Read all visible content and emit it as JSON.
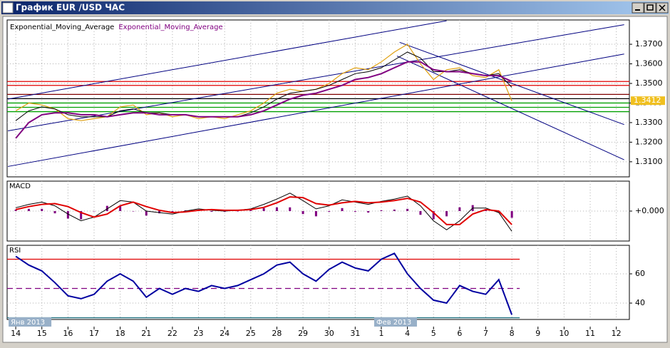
{
  "window": {
    "title": "График EUR /USD ЧАС"
  },
  "chart_data": [
    {
      "type": "line",
      "grid": true,
      "ylim": [
        1.3023,
        1.3824
      ],
      "yticks": [
        {
          "value": 1.37,
          "label": "1.3700"
        },
        {
          "value": 1.36,
          "label": "1.3600"
        },
        {
          "value": 1.35,
          "label": "1.3500"
        },
        {
          "value": 1.34,
          "label": "1.3400"
        },
        {
          "value": 1.33,
          "label": "1.3300"
        },
        {
          "value": 1.32,
          "label": "1.3200"
        },
        {
          "value": 1.31,
          "label": "1.3100"
        }
      ],
      "x": [
        0,
        0.5,
        1,
        1.5,
        2,
        2.5,
        3,
        3.5,
        4,
        4.5,
        5,
        5.5,
        6,
        6.5,
        7,
        7.5,
        8,
        8.5,
        9,
        9.5,
        10,
        10.5,
        11,
        11.5,
        12,
        12.5,
        13,
        13.5,
        14,
        14.5,
        15,
        15.5,
        16,
        16.5,
        17,
        17.5,
        18,
        18.5,
        19
      ],
      "series": [
        {
          "color": "#e0a010",
          "values": [
            1.336,
            1.34,
            1.339,
            1.337,
            1.332,
            1.331,
            1.332,
            1.333,
            1.338,
            1.339,
            1.334,
            1.335,
            1.333,
            1.334,
            1.332,
            1.333,
            1.332,
            1.334,
            1.336,
            1.34,
            1.345,
            1.347,
            1.346,
            1.347,
            1.35,
            1.355,
            1.358,
            1.357,
            1.361,
            1.366,
            1.37,
            1.36,
            1.352,
            1.357,
            1.358,
            1.354,
            1.353,
            1.357,
            1.341
          ]
        },
        {
          "name": "Exponential_Moving_Average",
          "color": "#000000",
          "values": [
            1.331,
            1.336,
            1.338,
            1.337,
            1.334,
            1.333,
            1.333,
            1.333,
            1.336,
            1.337,
            1.335,
            1.335,
            1.334,
            1.334,
            1.333,
            1.333,
            1.333,
            1.333,
            1.335,
            1.338,
            1.342,
            1.345,
            1.346,
            1.347,
            1.349,
            1.352,
            1.355,
            1.356,
            1.358,
            1.362,
            1.366,
            1.363,
            1.356,
            1.356,
            1.357,
            1.355,
            1.354,
            1.355,
            1.348
          ]
        },
        {
          "name": "Exponential_Moving_Average",
          "color": "#800080",
          "values": [
            1.322,
            1.33,
            1.334,
            1.335,
            1.335,
            1.334,
            1.334,
            1.333,
            1.334,
            1.335,
            1.335,
            1.334,
            1.334,
            1.334,
            1.333,
            1.333,
            1.333,
            1.333,
            1.334,
            1.336,
            1.339,
            1.342,
            1.344,
            1.345,
            1.347,
            1.349,
            1.352,
            1.353,
            1.355,
            1.358,
            1.361,
            1.361,
            1.357,
            1.356,
            1.356,
            1.355,
            1.354,
            1.354,
            1.351
          ]
        }
      ],
      "levels": [
        {
          "value": 1.351,
          "color": "#e00000"
        },
        {
          "value": 1.349,
          "color": "#e00000"
        },
        {
          "value": 1.3444,
          "color": "#800000"
        },
        {
          "value": 1.3422,
          "color": "#000000"
        },
        {
          "value": 1.34,
          "color": "#00a000"
        },
        {
          "value": 1.3378,
          "color": "#00a000"
        },
        {
          "value": 1.3356,
          "color": "#00a000"
        }
      ],
      "trendlines": [
        {
          "color": "#000080",
          "points": [
            [
              -0.3,
              1.342
            ],
            [
              16.5,
              1.382
            ]
          ]
        },
        {
          "color": "#000080",
          "points": [
            [
              -0.3,
              1.3258
            ],
            [
              23.3,
              1.38
            ]
          ]
        },
        {
          "color": "#000080",
          "points": [
            [
              -0.3,
              1.3076
            ],
            [
              23.3,
              1.365
            ]
          ]
        },
        {
          "color": "#000080",
          "points": [
            [
              14.7,
              1.371
            ],
            [
              23.3,
              1.329
            ]
          ]
        },
        {
          "color": "#000080",
          "points": [
            [
              14.6,
              1.364
            ],
            [
              23.3,
              1.311
            ]
          ]
        }
      ],
      "last_price": 1.3412
    },
    {
      "type": "line",
      "title": "MACD",
      "grid": true,
      "ylim": [
        -0.004,
        0.004
      ],
      "yticks": [
        {
          "value": 0,
          "label": "+0.000"
        }
      ],
      "x": [
        0,
        0.5,
        1,
        1.5,
        2,
        2.5,
        3,
        3.5,
        4,
        4.5,
        5,
        5.5,
        6,
        6.5,
        7,
        7.5,
        8,
        8.5,
        9,
        9.5,
        10,
        10.5,
        11,
        11.5,
        12,
        12.5,
        13,
        13.5,
        14,
        14.5,
        15,
        15.5,
        16,
        16.5,
        17,
        17.5,
        18,
        18.5,
        19
      ],
      "histogram": {
        "color": "#800080",
        "values": [
          0.0002,
          0.0003,
          0.0003,
          -0.0003,
          -0.001,
          -0.0011,
          0,
          0.0007,
          0.0007,
          0,
          -0.0006,
          -0.0003,
          -0.0002,
          0.0001,
          0.0002,
          -0.0001,
          -0.0001,
          0,
          0.0001,
          0.0004,
          0.0005,
          0.0005,
          -0.0004,
          -0.0007,
          -0.0001,
          0.0004,
          -0.0001,
          -0.0002,
          0.0001,
          0.0002,
          0.0003,
          -0.0005,
          -0.0011,
          -0.0007,
          0.0005,
          0.0008,
          0.0002,
          -0.0002,
          -0.0009
        ]
      },
      "series": [
        {
          "color": "#000000",
          "values": [
            0.00045,
            0.0009,
            0.0012,
            0.0007,
            -0.0004,
            -0.0013,
            -0.0008,
            0.0003,
            0.0014,
            0.0012,
            0,
            -0.0002,
            -0.0004,
            0,
            0.0003,
            0.0001,
            0,
            0.0001,
            0.0003,
            0.0009,
            0.0016,
            0.0024,
            0.0014,
            0.0003,
            0.0007,
            0.0015,
            0.0012,
            0.0009,
            0.0013,
            0.0016,
            0.002,
            0.0007,
            -0.0013,
            -0.0025,
            -0.0013,
            0.0004,
            0.0004,
            -0.0002,
            -0.0027
          ]
        },
        {
          "color": "#e00000",
          "values": [
            0.0002,
            0.0006,
            0.0009,
            0.001,
            0.0006,
            -0.0002,
            -0.0008,
            -0.0004,
            0.0007,
            0.0012,
            0.0006,
            0.0001,
            -0.0002,
            -0.0001,
            0.0001,
            0.0002,
            0.0001,
            0.0001,
            0.0002,
            0.0005,
            0.0011,
            0.0019,
            0.0018,
            0.001,
            0.0008,
            0.0011,
            0.0013,
            0.0011,
            0.0012,
            0.0014,
            0.0017,
            0.0012,
            -0.0002,
            -0.0018,
            -0.0018,
            -0.0004,
            0.0002,
            0,
            -0.0018
          ]
        }
      ]
    },
    {
      "type": "line",
      "title": "RSI",
      "grid": true,
      "ylim": [
        28.8,
        79.5
      ],
      "yticks": [
        60,
        40
      ],
      "xlim": [
        -0.33,
        23.5
      ],
      "xticks": [
        {
          "value": 0,
          "label": "14"
        },
        {
          "value": 1,
          "label": "15"
        },
        {
          "value": 2,
          "label": "16"
        },
        {
          "value": 3,
          "label": "17"
        },
        {
          "value": 4,
          "label": "18"
        },
        {
          "value": 5,
          "label": "21"
        },
        {
          "value": 6,
          "label": "22"
        },
        {
          "value": 7,
          "label": "23"
        },
        {
          "value": 8,
          "label": "24"
        },
        {
          "value": 9,
          "label": "25"
        },
        {
          "value": 10,
          "label": "28"
        },
        {
          "value": 11,
          "label": "29"
        },
        {
          "value": 12,
          "label": "30"
        },
        {
          "value": 13,
          "label": "31"
        },
        {
          "value": 14,
          "label": "1"
        },
        {
          "value": 15,
          "label": "4"
        },
        {
          "value": 16,
          "label": "5"
        },
        {
          "value": 17,
          "label": "6"
        },
        {
          "value": 18,
          "label": "7"
        },
        {
          "value": 19,
          "label": "8"
        },
        {
          "value": 20,
          "label": "9"
        },
        {
          "value": 21,
          "label": "10"
        },
        {
          "value": 22,
          "label": "11"
        },
        {
          "value": 23,
          "label": "12"
        }
      ],
      "period_labels": [
        {
          "value": 0,
          "label": "Янв 2013"
        },
        {
          "value": 14,
          "label": "Фев 2013"
        }
      ],
      "x": [
        0,
        0.5,
        1,
        1.5,
        2,
        2.5,
        3,
        3.5,
        4,
        4.5,
        5,
        5.5,
        6,
        6.5,
        7,
        7.5,
        8,
        8.5,
        9,
        9.5,
        10,
        10.5,
        11,
        11.5,
        12,
        12.5,
        13,
        13.5,
        14,
        14.5,
        15,
        15.5,
        16,
        16.5,
        17,
        17.5,
        18,
        18.5,
        19
      ],
      "series": [
        {
          "color": "#0000a0",
          "values": [
            72,
            66,
            62,
            54,
            45,
            43,
            46,
            55,
            60,
            55,
            44,
            50,
            46,
            50,
            48,
            52,
            50,
            52,
            56,
            60,
            66,
            68,
            60,
            55,
            63,
            68,
            64,
            62,
            70,
            74,
            60,
            50,
            42,
            40,
            52,
            48,
            46,
            56,
            32
          ]
        }
      ],
      "levels": [
        {
          "value": 70,
          "color": "#e00000"
        },
        {
          "value": 50,
          "color": "#800080",
          "dashed": true
        },
        {
          "value": 30,
          "color": "#207080"
        }
      ]
    }
  ]
}
